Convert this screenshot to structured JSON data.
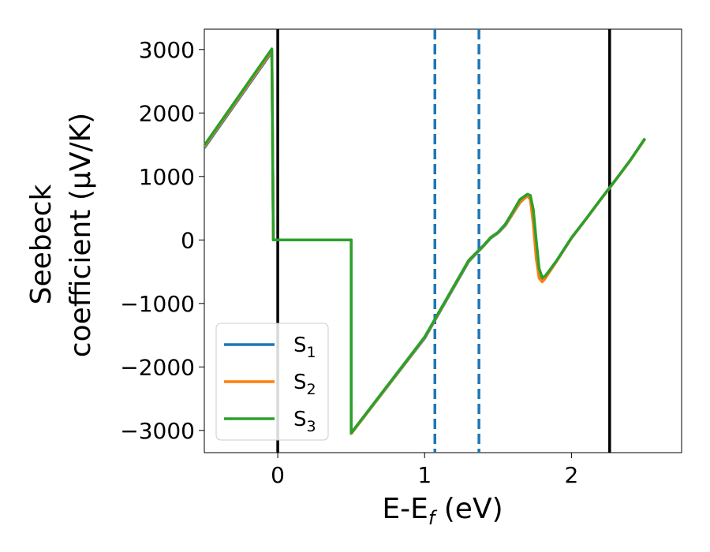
{
  "chart_data": {
    "type": "line",
    "xlabel": "E-E",
    "xlabel_sub": "f",
    "xlabel_unit": " (eV)",
    "ylabel_line1": "Seebeck",
    "ylabel_line2": "coefficient  (μV/K)",
    "xlim": [
      -0.5,
      2.75
    ],
    "ylim": [
      -3350,
      3320
    ],
    "xticks": [
      0,
      1,
      2
    ],
    "xtick_labels": [
      "0",
      "1",
      "2"
    ],
    "yticks": [
      3000,
      2000,
      1000,
      0,
      -1000,
      -2000,
      -3000
    ],
    "ytick_labels": [
      "3000",
      "2000",
      "1000",
      "0",
      "−1000",
      "−2000",
      "−3000"
    ],
    "grid": false,
    "legend_position": "lower-left",
    "series": [
      {
        "name": "S",
        "sub": "1",
        "color": "#1f77b4",
        "x": [
          -0.5,
          -0.04,
          -0.03,
          0.5,
          0.5,
          1.0,
          1.3,
          1.4,
          1.45,
          1.5,
          1.55,
          1.6,
          1.65,
          1.7,
          1.72,
          1.74,
          1.76,
          1.78,
          1.8,
          1.82,
          1.85,
          1.9,
          2.0,
          2.1,
          2.2,
          2.3,
          2.4,
          2.5
        ],
        "y": [
          1450,
          2960,
          0,
          0,
          -3050,
          -1550,
          -340,
          -100,
          30,
          110,
          230,
          410,
          590,
          700,
          650,
          300,
          -250,
          -580,
          -650,
          -600,
          -500,
          -330,
          30,
          330,
          640,
          940,
          1250,
          1590
        ]
      },
      {
        "name": "S",
        "sub": "2",
        "color": "#ff7f0e",
        "x": [
          -0.5,
          -0.04,
          -0.03,
          0.5,
          0.5,
          1.0,
          1.3,
          1.4,
          1.45,
          1.5,
          1.55,
          1.6,
          1.65,
          1.7,
          1.72,
          1.74,
          1.76,
          1.78,
          1.8,
          1.82,
          1.85,
          1.9,
          2.0,
          2.1,
          2.2,
          2.3,
          2.4,
          2.5
        ],
        "y": [
          1470,
          2980,
          0,
          0,
          -3050,
          -1540,
          -330,
          -95,
          35,
          115,
          240,
          415,
          595,
          690,
          640,
          250,
          -290,
          -600,
          -660,
          -610,
          -505,
          -330,
          30,
          330,
          640,
          940,
          1250,
          1590
        ]
      },
      {
        "name": "S",
        "sub": "3",
        "color": "#2ca02c",
        "x": [
          -0.5,
          -0.04,
          -0.03,
          0.5,
          0.5,
          1.0,
          1.3,
          1.4,
          1.45,
          1.5,
          1.55,
          1.6,
          1.65,
          1.7,
          1.72,
          1.74,
          1.76,
          1.78,
          1.8,
          1.82,
          1.85,
          1.9,
          2.0,
          2.1,
          2.2,
          2.3,
          2.4,
          2.5
        ],
        "y": [
          1490,
          3010,
          0,
          0,
          -3040,
          -1530,
          -320,
          -90,
          40,
          120,
          250,
          440,
          640,
          720,
          700,
          480,
          0,
          -450,
          -590,
          -570,
          -480,
          -320,
          35,
          335,
          645,
          945,
          1255,
          1600
        ]
      }
    ],
    "vlines": [
      {
        "x": 0.0,
        "style": "solid",
        "color": "#000000"
      },
      {
        "x": 2.26,
        "style": "solid",
        "color": "#000000"
      },
      {
        "x": 1.07,
        "style": "dashed",
        "color": "#1f77b4"
      },
      {
        "x": 1.37,
        "style": "dashed",
        "color": "#1f77b4"
      }
    ]
  }
}
